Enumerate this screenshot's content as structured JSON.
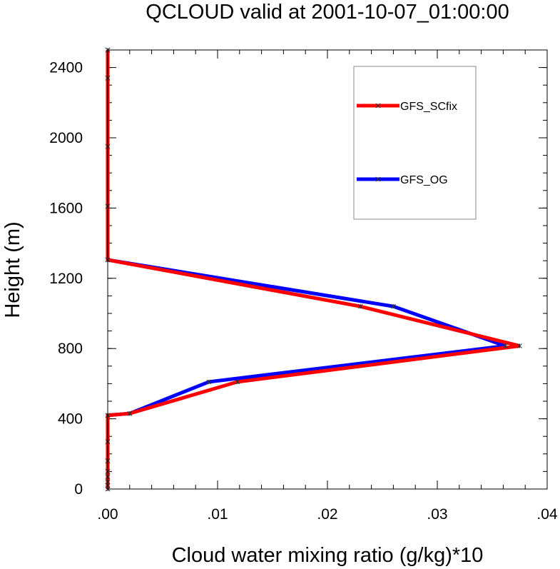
{
  "chart_data": {
    "type": "line",
    "title": "QCLOUD valid at 2001-10-07_01:00:00",
    "xlabel": "Cloud water mixing ratio (g/kg)*10",
    "ylabel": "Height (m)",
    "xlim": [
      0,
      0.04
    ],
    "ylim": [
      0,
      2500
    ],
    "x_ticks": [
      0,
      0.01,
      0.02,
      0.03,
      0.04
    ],
    "x_tick_labels": [
      ".00",
      ".01",
      ".02",
      ".03",
      ".04"
    ],
    "y_ticks": [
      0,
      400,
      800,
      1200,
      1600,
      2000,
      2400
    ],
    "y_tick_labels": [
      "0",
      "400",
      "800",
      "1200",
      "1600",
      "2000",
      "2400"
    ],
    "grid": false,
    "legend_position": "top-right",
    "series": [
      {
        "name": "GFS_SCfix",
        "color": "#ff0000",
        "x": [
          0,
          0,
          0,
          0,
          0,
          0,
          0,
          0,
          0.002,
          0.0118,
          0.0375,
          0.023,
          0,
          0,
          0,
          0,
          0
        ],
        "y": [
          0,
          20,
          40,
          70,
          100,
          160,
          270,
          420,
          430,
          610,
          815,
          1040,
          1305,
          1610,
          1950,
          2340,
          2500
        ]
      },
      {
        "name": "GFS_OG",
        "color": "#0000ff",
        "x": [
          0,
          0,
          0,
          0,
          0,
          0,
          0,
          0,
          0.002,
          0.0092,
          0.0362,
          0.026,
          0,
          0,
          0,
          0,
          0
        ],
        "y": [
          0,
          20,
          40,
          70,
          100,
          160,
          270,
          420,
          430,
          610,
          815,
          1040,
          1305,
          1610,
          1950,
          2340,
          2500
        ]
      }
    ]
  }
}
